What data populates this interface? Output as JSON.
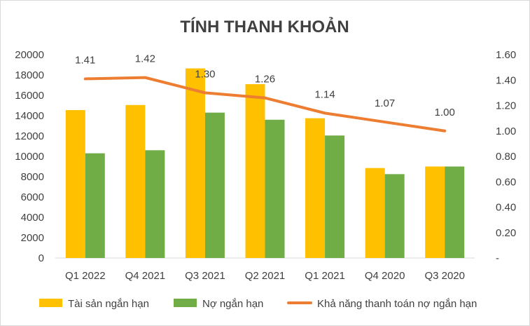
{
  "chart_data": {
    "type": "bar",
    "title": "TÍNH THANH KHOẢN",
    "categories": [
      "Q1 2022",
      "Q4 2021",
      "Q3 2021",
      "Q2 2021",
      "Q1 2021",
      "Q4 2020",
      "Q3 2020"
    ],
    "series": [
      {
        "name": "Tài sản ngắn hạn",
        "type": "bar",
        "axis": "left",
        "color": "#FFC000",
        "values": [
          14550,
          15050,
          18650,
          17100,
          13750,
          8850,
          9000
        ]
      },
      {
        "name": "Nợ ngắn hạn",
        "type": "bar",
        "axis": "left",
        "color": "#70AD47",
        "values": [
          10300,
          10600,
          14300,
          13600,
          12050,
          8250,
          9000
        ]
      },
      {
        "name": "Khả năng thanh toán nợ ngắn hạn",
        "type": "line",
        "axis": "right",
        "color": "#ED7D31",
        "values": [
          1.41,
          1.42,
          1.3,
          1.26,
          1.14,
          1.07,
          1.0
        ],
        "labels": [
          "1.41",
          "1.42",
          "1.30",
          "1.26",
          "1.14",
          "1.07",
          "1.00"
        ]
      }
    ],
    "y_left": {
      "ylim": [
        0,
        20000
      ],
      "ticks": [
        "0",
        "2000",
        "4000",
        "6000",
        "8000",
        "10000",
        "12000",
        "14000",
        "16000",
        "18000",
        "20000"
      ]
    },
    "y_right": {
      "ylim": [
        0,
        1.6
      ],
      "ticks": [
        "-",
        "0.20",
        "0.40",
        "0.60",
        "0.80",
        "1.00",
        "1.20",
        "1.40",
        "1.60"
      ]
    },
    "grid": false,
    "legend_position": "bottom"
  }
}
